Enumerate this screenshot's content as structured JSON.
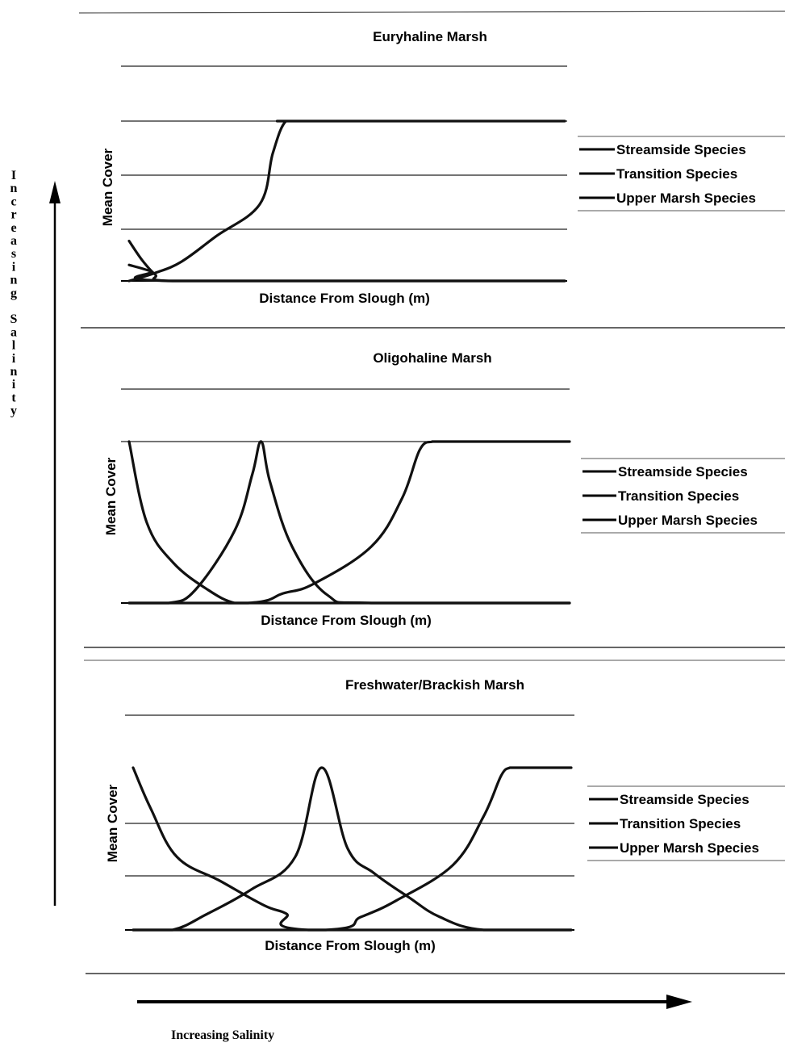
{
  "figure": {
    "vertical_axis_label": "Increasing Salinity",
    "horizontal_axis_label": "Increasing Salinity"
  },
  "chart_data": [
    {
      "type": "line",
      "title": "Euryhaline Marsh",
      "xlabel": "Distance From Slough (m)",
      "ylabel": "Mean Cover",
      "xlim": [
        0,
        100
      ],
      "ylim": [
        0,
        100
      ],
      "grid": true,
      "legend": "right",
      "series": [
        {
          "name": "Streamside Species",
          "x": [
            0,
            3,
            6,
            9,
            40,
            100
          ],
          "y": [
            25,
            13,
            4,
            0,
            0,
            0
          ]
        },
        {
          "name": "Transition Species",
          "x": [
            0,
            5,
            10,
            100
          ],
          "y": [
            10,
            6,
            0,
            0
          ]
        },
        {
          "name": "Upper Marsh Species",
          "x": [
            0,
            6,
            12,
            20,
            30,
            33,
            36,
            40,
            100
          ],
          "y": [
            0,
            5,
            12,
            28,
            48,
            80,
            100,
            100,
            100
          ]
        }
      ]
    },
    {
      "type": "line",
      "title": "Oligohaline Marsh",
      "xlabel": "Distance From Slough (m)",
      "ylabel": "Mean Cover",
      "xlim": [
        0,
        100
      ],
      "ylim": [
        0,
        100
      ],
      "grid": true,
      "legend": "right",
      "series": [
        {
          "name": "Streamside Species",
          "x": [
            0,
            4,
            10,
            18,
            24,
            30,
            100
          ],
          "y": [
            100,
            50,
            25,
            8,
            0,
            0,
            0
          ]
        },
        {
          "name": "Transition Species",
          "x": [
            0,
            9,
            15,
            24,
            28,
            30,
            32,
            37,
            45,
            55,
            100
          ],
          "y": [
            0,
            0,
            8,
            45,
            80,
            100,
            75,
            35,
            5,
            0,
            0
          ]
        },
        {
          "name": "Upper Marsh Species",
          "x": [
            0,
            27,
            35,
            42,
            55,
            62,
            66,
            69,
            72,
            100
          ],
          "y": [
            0,
            0,
            6,
            12,
            35,
            65,
            95,
            100,
            100,
            100
          ]
        }
      ]
    },
    {
      "type": "line",
      "title": "Freshwater/Brackish Marsh",
      "xlabel": "Distance From Slough (m)",
      "ylabel": "Mean Cover",
      "xlim": [
        0,
        100
      ],
      "ylim": [
        0,
        100
      ],
      "grid": true,
      "legend": "right",
      "series": [
        {
          "name": "Streamside Species",
          "x": [
            0,
            4,
            10,
            20,
            30,
            35,
            40,
            100
          ],
          "y": [
            100,
            75,
            45,
            30,
            15,
            10,
            0,
            0
          ]
        },
        {
          "name": "Transition Species",
          "x": [
            0,
            9,
            17,
            27,
            37,
            43,
            49,
            55,
            63,
            70,
            80,
            100
          ],
          "y": [
            0,
            0,
            10,
            25,
            45,
            100,
            50,
            35,
            20,
            8,
            0,
            0
          ]
        },
        {
          "name": "Upper Marsh Species",
          "x": [
            0,
            44,
            52,
            60,
            73,
            80,
            84,
            86,
            88,
            100
          ],
          "y": [
            0,
            0,
            8,
            18,
            40,
            70,
            95,
            100,
            100,
            100
          ]
        }
      ]
    }
  ]
}
